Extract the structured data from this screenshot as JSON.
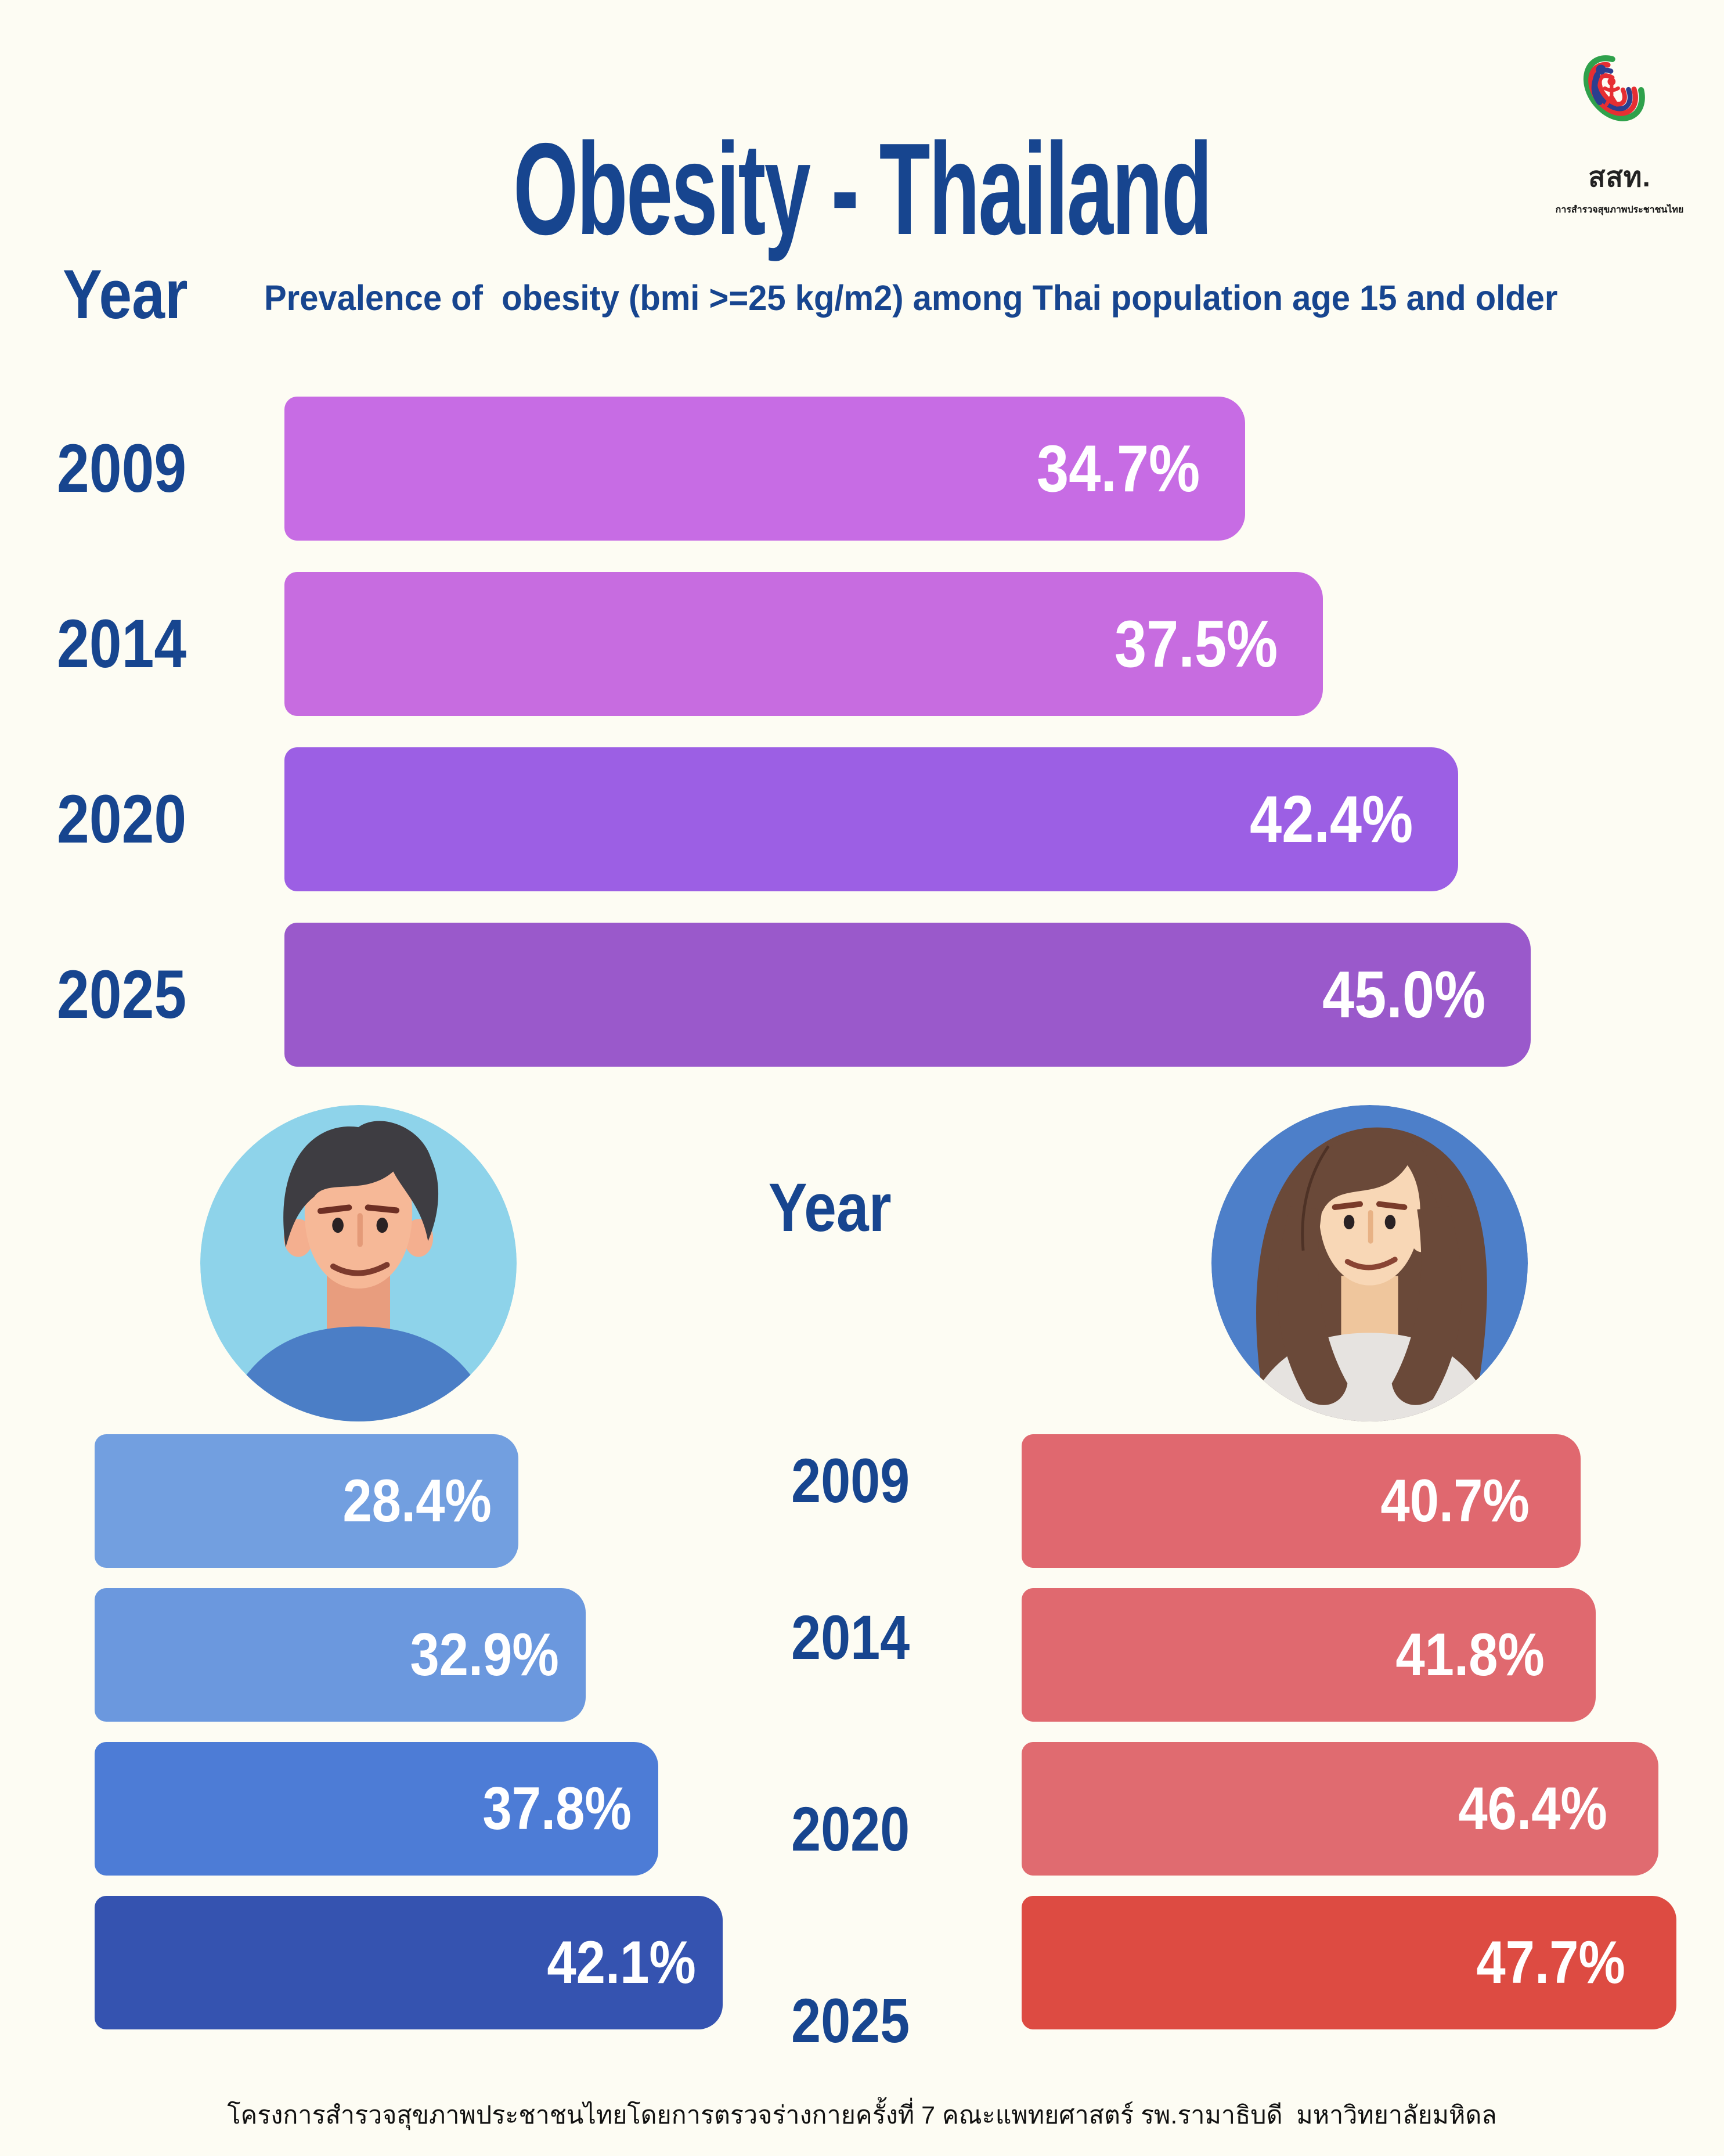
{
  "page": {
    "background": "#fdfcf3",
    "navy": "#17458f"
  },
  "header": {
    "title": "Obesity - Thailand",
    "logo": {
      "abbr": "สสท.",
      "caption": "การสำรวจสุขภาพประชาชนไทย"
    }
  },
  "overview": {
    "axis_label": "Year",
    "subtitle": "Prevalence of  obesity (bmi >=25 kg/m2) among Thai population age 15 and older"
  },
  "gender_section": {
    "axis_label": "Year"
  },
  "footer": {
    "credit": "โครงการสำรวจสุขภาพประชาชนไทยโดยการตรวจร่างกายครั้งที่ 7 คณะแพทยศาสตร์ รพ.รามาธิบดี  มหาวิทยาลัยมหิดล"
  },
  "chart_data": [
    {
      "id": "overall",
      "type": "bar",
      "orientation": "horizontal",
      "title": "Prevalence of  obesity (bmi >=25 kg/m2) among Thai population age 15 and older",
      "ylabel": "Year",
      "xlabel": "",
      "unit": "%",
      "categories": [
        "2009",
        "2014",
        "2020",
        "2025"
      ],
      "values": [
        34.7,
        37.5,
        42.4,
        45.0
      ],
      "labels": [
        "34.7%",
        "37.5%",
        "42.4%",
        "45.0%"
      ],
      "bar_colors": [
        "#c76ce4",
        "#c76ce0",
        "#9c5fe4",
        "#9a59cb"
      ],
      "xlim": [
        0,
        50
      ],
      "grid": false,
      "value_label_position": "inside-right"
    },
    {
      "id": "male",
      "type": "bar",
      "orientation": "horizontal",
      "group": "male",
      "categories": [
        "2009",
        "2014",
        "2020",
        "2025"
      ],
      "values": [
        28.4,
        32.9,
        37.8,
        42.1
      ],
      "labels": [
        "28.4%",
        "32.9%",
        "37.8%",
        "42.1%"
      ],
      "bar_colors": [
        "#729fe0",
        "#6b98de",
        "#4d7cd6",
        "#3553b0"
      ],
      "xlim": [
        0,
        50
      ],
      "grid": false,
      "value_label_position": "inside-right"
    },
    {
      "id": "female",
      "type": "bar",
      "orientation": "horizontal",
      "group": "female",
      "categories": [
        "2009",
        "2014",
        "2020",
        "2025"
      ],
      "values": [
        40.7,
        41.8,
        46.4,
        47.7
      ],
      "labels": [
        "40.7%",
        "41.8%",
        "46.4%",
        "47.7%"
      ],
      "bar_colors": [
        "#e0686f",
        "#e0696f",
        "#e06b70",
        "#dd4b42"
      ],
      "xlim": [
        0,
        50
      ],
      "grid": false,
      "value_label_position": "inside-right"
    }
  ]
}
